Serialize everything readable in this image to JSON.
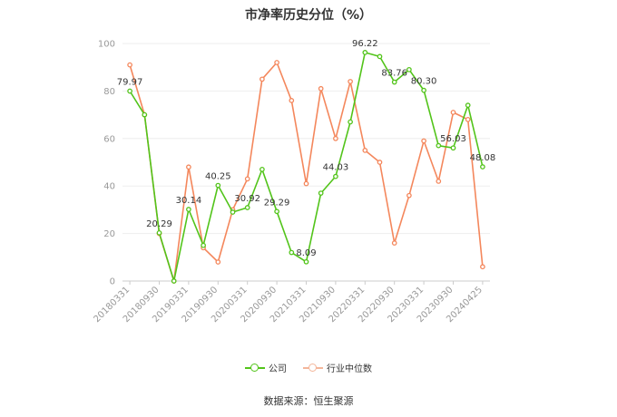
{
  "chart_data": {
    "type": "line",
    "title": "市净率历史分位（%）",
    "ylim": [
      0,
      100
    ],
    "yticks": [
      0,
      20,
      40,
      60,
      80,
      100
    ],
    "grid": true,
    "legend_position": "bottom",
    "x_tick_labels": [
      "20180331",
      "20180930",
      "20190331",
      "20190930",
      "20200331",
      "20200930",
      "20210331",
      "20210930",
      "20220331",
      "20220930",
      "20230331",
      "20230930",
      "20240425"
    ],
    "x_tick_indices": [
      0,
      2,
      4,
      6,
      8,
      10,
      12,
      14,
      16,
      18,
      20,
      22,
      24
    ],
    "series": [
      {
        "name": "公司",
        "color": "#52c41a",
        "values": [
          79.97,
          70,
          20.29,
          0,
          30.14,
          15,
          40.25,
          29,
          30.92,
          47,
          29.29,
          12,
          8.09,
          37,
          44.03,
          67,
          96.22,
          94.5,
          83.76,
          89,
          80.3,
          57,
          56.03,
          74,
          48.08
        ],
        "labels": {
          "0": "79.97",
          "2": "20.29",
          "4": "30.14",
          "6": "40.25",
          "8": "30.92",
          "10": "29.29",
          "12": "8.09",
          "14": "44.03",
          "16": "96.22",
          "18": "83.76",
          "20": "80.30",
          "22": "56.03",
          "24": "48.08"
        }
      },
      {
        "name": "行业中位数",
        "color": "#f4875c",
        "values": [
          91,
          70,
          20,
          0,
          48,
          14,
          8,
          30,
          43,
          85,
          92,
          76,
          41,
          81,
          60,
          84,
          55,
          50,
          16,
          36,
          59,
          42,
          71,
          68,
          6
        ]
      }
    ]
  },
  "legend": {
    "company": "公司",
    "industry": "行业中位数"
  },
  "source": "数据来源：恒生聚源"
}
